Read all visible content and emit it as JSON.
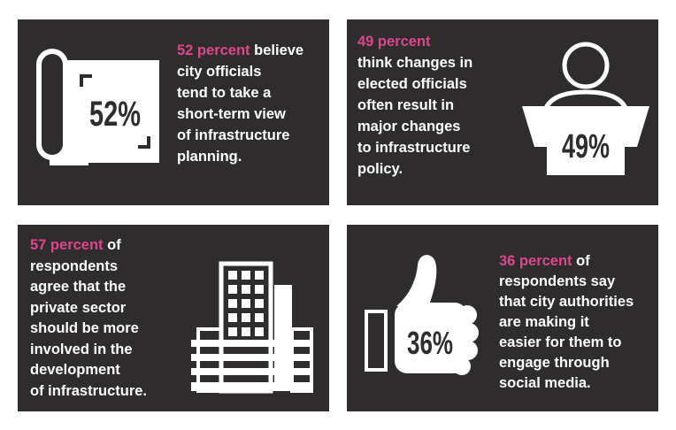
{
  "colors": {
    "card_bg": "#2e2c2d",
    "highlight": "#e0458d",
    "text": "#ffffff"
  },
  "cards": [
    {
      "icon": "scroll-plan-icon",
      "percent_badge": "52%",
      "percent_label": "52 percent",
      "lines": [
        "believe",
        "city officials",
        "tend to take a",
        "short-term view",
        "of infrastructure",
        "planning."
      ]
    },
    {
      "icon": "speaker-podium-icon",
      "percent_badge": "49%",
      "percent_label": "49 percent",
      "lines": [
        "think changes in",
        "elected officials",
        "often result in",
        "major changes",
        "to infrastructure",
        "policy."
      ]
    },
    {
      "icon": "office-building-icon",
      "percent_label": "57 percent",
      "lines": [
        "of",
        "respondents",
        "agree that the",
        "private sector",
        "should be more",
        "involved in the",
        "development",
        "of infrastructure."
      ]
    },
    {
      "icon": "thumbs-up-icon",
      "percent_badge": "36%",
      "percent_label": "36 percent",
      "lines": [
        "of",
        "respondents say",
        "that city authorities",
        "are making it",
        "easier for them to",
        "engage through",
        "social media."
      ]
    }
  ]
}
